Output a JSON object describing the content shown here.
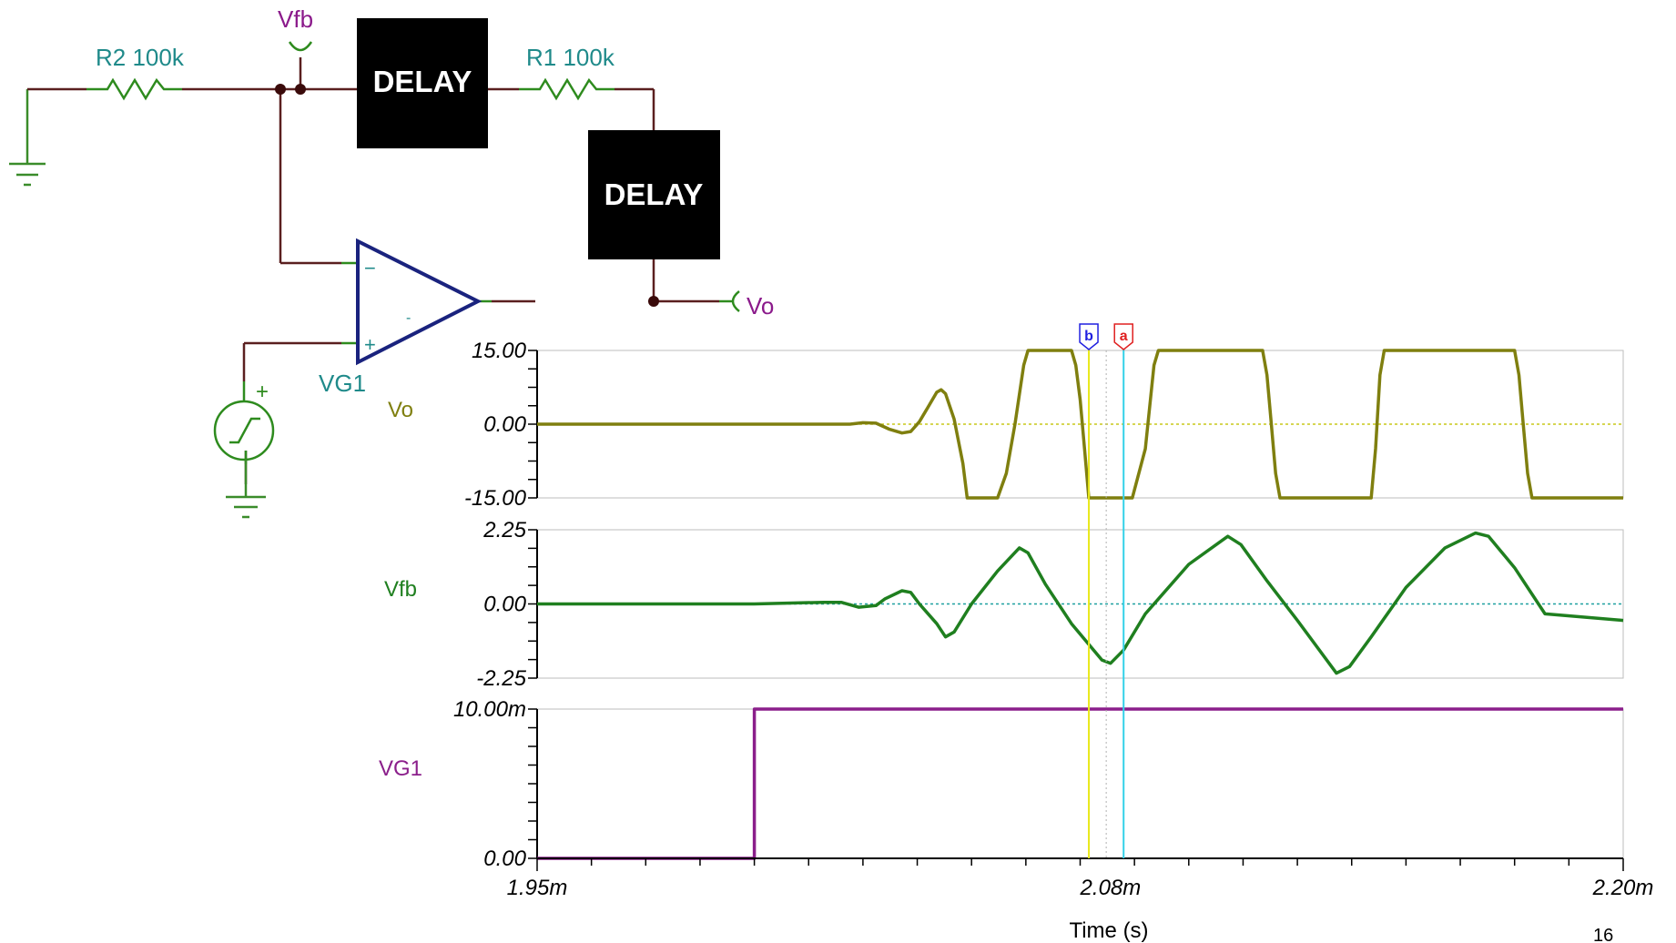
{
  "schematic": {
    "r2_label": "R2 100k",
    "r1_label": "R1 100k",
    "vfb_probe": "Vfb",
    "vo_probe": "Vo",
    "source_label": "VG1",
    "delay1_label": "DELAY",
    "delay2_label": "DELAY",
    "opamp_minus": "−",
    "opamp_plus": "+",
    "opamp_small_minus": "-",
    "source_plus": "+"
  },
  "colors": {
    "wire": "#5a1f1f",
    "resistor": "#2e8b1e",
    "ground": "#3a8c2a",
    "opamp": "#1a237e",
    "probe_label": "#8b1a8b",
    "teal_label": "#1f8a8a",
    "vo_trace": "#7f7f0f",
    "vfb_trace": "#1f7f1f",
    "vg1_trace": "#8b1f8b",
    "cursor_a": "#33d1e8",
    "cursor_b": "#e8e81a",
    "cursor_a_tag": "#e02020",
    "cursor_b_tag": "#2020e0"
  },
  "cursors": {
    "a_label": "a",
    "b_label": "b",
    "a_time": 0.002085,
    "b_time": 0.002077
  },
  "chart_data": [
    {
      "type": "line",
      "ylabel": "Vo",
      "ylim": [
        -15,
        15
      ],
      "yticks": [
        "15.00",
        "0.00",
        "-15.00"
      ],
      "xlim": [
        0.00195,
        0.0022
      ],
      "series": [
        {
          "name": "Vo",
          "points": [
            [
              0.00195,
              0
            ],
            [
              0.002,
              0
            ],
            [
              0.002022,
              0
            ],
            [
              0.002025,
              0.3
            ],
            [
              0.002028,
              0.2
            ],
            [
              0.002031,
              -1.0
            ],
            [
              0.002034,
              -1.8
            ],
            [
              0.002036,
              -1.5
            ],
            [
              0.002038,
              0.5
            ],
            [
              0.00204,
              3.5
            ],
            [
              0.002042,
              6.5
            ],
            [
              0.002043,
              7.0
            ],
            [
              0.002044,
              6.2
            ],
            [
              0.002046,
              1.0
            ],
            [
              0.002048,
              -8.0
            ],
            [
              0.002049,
              -15
            ],
            [
              0.002056,
              -15
            ],
            [
              0.002058,
              -10
            ],
            [
              0.00206,
              0
            ],
            [
              0.002062,
              12
            ],
            [
              0.002063,
              15
            ],
            [
              0.002073,
              15
            ],
            [
              0.002074,
              12
            ],
            [
              0.002075,
              5
            ],
            [
              0.002076,
              -5
            ],
            [
              0.002077,
              -15
            ],
            [
              0.002087,
              -15
            ],
            [
              0.00209,
              -5
            ],
            [
              0.002092,
              12
            ],
            [
              0.002093,
              15
            ],
            [
              0.002117,
              15
            ],
            [
              0.002118,
              10
            ],
            [
              0.002119,
              0
            ],
            [
              0.00212,
              -10
            ],
            [
              0.002121,
              -15
            ],
            [
              0.002142,
              -15
            ],
            [
              0.002143,
              -5
            ],
            [
              0.002144,
              10
            ],
            [
              0.002145,
              15
            ],
            [
              0.002175,
              15
            ],
            [
              0.002176,
              10
            ],
            [
              0.002177,
              0
            ],
            [
              0.002178,
              -10
            ],
            [
              0.002179,
              -15
            ],
            [
              0.0022,
              -15
            ]
          ]
        }
      ]
    },
    {
      "type": "line",
      "ylabel": "Vfb",
      "ylim": [
        -2.25,
        2.25
      ],
      "yticks": [
        "2.25",
        "0.00",
        "-2.25"
      ],
      "xlim": [
        0.00195,
        0.0022
      ],
      "series": [
        {
          "name": "Vfb",
          "points": [
            [
              0.00195,
              0
            ],
            [
              0.002,
              0
            ],
            [
              0.002016,
              0.05
            ],
            [
              0.00202,
              0.05
            ],
            [
              0.002024,
              -0.1
            ],
            [
              0.002028,
              -0.05
            ],
            [
              0.00203,
              0.15
            ],
            [
              0.002034,
              0.4
            ],
            [
              0.002036,
              0.35
            ],
            [
              0.002038,
              0.0
            ],
            [
              0.002042,
              -0.6
            ],
            [
              0.002044,
              -1.0
            ],
            [
              0.002046,
              -0.85
            ],
            [
              0.00205,
              0.0
            ],
            [
              0.002056,
              1.0
            ],
            [
              0.002061,
              1.7
            ],
            [
              0.002063,
              1.55
            ],
            [
              0.002067,
              0.6
            ],
            [
              0.002073,
              -0.6
            ],
            [
              0.00208,
              -1.7
            ],
            [
              0.002082,
              -1.8
            ],
            [
              0.002085,
              -1.4
            ],
            [
              0.00209,
              -0.3
            ],
            [
              0.0021,
              1.2
            ],
            [
              0.002109,
              2.05
            ],
            [
              0.002112,
              1.8
            ],
            [
              0.002118,
              0.7
            ],
            [
              0.002125,
              -0.5
            ],
            [
              0.002134,
              -2.1
            ],
            [
              0.002137,
              -1.9
            ],
            [
              0.002142,
              -1.0
            ],
            [
              0.00215,
              0.5
            ],
            [
              0.002159,
              1.7
            ],
            [
              0.002166,
              2.15
            ],
            [
              0.002169,
              2.05
            ],
            [
              0.002175,
              1.1
            ],
            [
              0.002182,
              -0.3
            ],
            [
              0.0022,
              -0.5
            ]
          ]
        }
      ]
    },
    {
      "type": "line",
      "ylabel": "VG1",
      "ylim": [
        0,
        0.01
      ],
      "yticks": [
        "10.00m",
        "0.00"
      ],
      "xlim": [
        0.00195,
        0.0022
      ],
      "xticks": [
        "1.95m",
        "2.08m",
        "2.20m"
      ],
      "xlabel": "Time (s)",
      "series": [
        {
          "name": "VG1",
          "points": [
            [
              0.00195,
              0
            ],
            [
              0.002,
              0
            ],
            [
              0.002,
              0.01
            ],
            [
              0.0022,
              0.01
            ]
          ]
        }
      ]
    }
  ],
  "page_number": "16"
}
